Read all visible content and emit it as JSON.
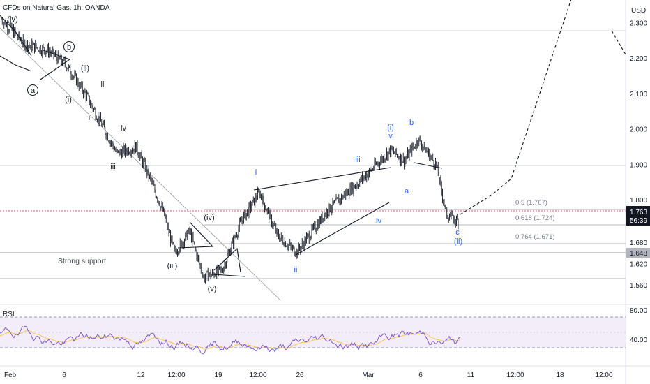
{
  "header": {
    "title": "CFDs on Natural Gas, 1h, OANDA",
    "currency": "USD"
  },
  "price_axis": {
    "ticks": [
      "2.300",
      "2.200",
      "2.100",
      "2.000",
      "1.900",
      "1.800",
      "1.680",
      "1.620",
      "1.560"
    ],
    "tick_values": [
      2.3,
      2.2,
      2.1,
      2.0,
      1.9,
      1.8,
      1.68,
      1.62,
      1.56
    ],
    "current_price": "1.763",
    "countdown": "56:39",
    "support_price": "1.648"
  },
  "time_axis": {
    "labels": [
      "Feb",
      "6",
      "12",
      "12:00",
      "19",
      "12:00",
      "26",
      "Mar",
      "6",
      "11",
      "12:00",
      "18",
      "12:00"
    ]
  },
  "fib_levels": [
    {
      "label": "0.5 (1.767)",
      "value": 1.767
    },
    {
      "label": "0.618 (1.724)",
      "value": 1.724
    },
    {
      "label": "0.764 (1.671)",
      "value": 1.671
    }
  ],
  "annotations": {
    "support": "Strong support"
  },
  "wave_labels": {
    "black": [
      "(iv)",
      "a",
      "b",
      "(ii)",
      "ii",
      "(i)",
      "i",
      "iv",
      "iii",
      "(iii)",
      "(v)",
      "(iv)"
    ],
    "blue": [
      "i",
      "iii",
      "(i)",
      "v",
      "b",
      "a",
      "iv",
      "ii",
      "c",
      "(ii)"
    ]
  },
  "rsi": {
    "label": "RSI",
    "ticks": [
      "80.00",
      "40.00"
    ],
    "upper": 70,
    "lower": 30,
    "last": 40
  },
  "colors": {
    "candle": "#131722",
    "blue_wave": "#2962ff",
    "rsi_line": "#7e57c2",
    "rsi_ma": "#f7c55c",
    "rsi_band": "#ede7f6",
    "trend": "#131722",
    "current_price_bg": "#131722",
    "support_bg": "#b2b5be"
  },
  "chart_data": {
    "type": "candlestick",
    "title": "CFDs on Natural Gas, 1h, OANDA",
    "ylim": [
      1.53,
      2.36
    ],
    "ylabel": "USD",
    "x_start_label": "Feb",
    "path_keypoints": [
      {
        "t": "Feb 1",
        "price": 2.31
      },
      {
        "t": "Feb 2",
        "price": 2.24
      },
      {
        "t": "Feb 4",
        "price": 2.22
      },
      {
        "t": "Feb 6",
        "price": 2.18
      },
      {
        "t": "Feb 8",
        "price": 2.09
      },
      {
        "t": "Feb 10",
        "price": 1.93
      },
      {
        "t": "Feb 11",
        "price": 1.95
      },
      {
        "t": "Feb 13",
        "price": 1.86
      },
      {
        "t": "Feb 15",
        "price": 1.76
      },
      {
        "t": "Feb 16",
        "price": 1.65
      },
      {
        "t": "Feb 17",
        "price": 1.71
      },
      {
        "t": "Feb 19",
        "price": 1.58
      },
      {
        "t": "Feb 20",
        "price": 1.6
      },
      {
        "t": "Feb 21",
        "price": 1.74
      },
      {
        "t": "Feb 22",
        "price": 1.82
      },
      {
        "t": "Feb 24",
        "price": 1.7
      },
      {
        "t": "Feb 25",
        "price": 1.65
      },
      {
        "t": "Feb 27",
        "price": 1.77
      },
      {
        "t": "Mar 1",
        "price": 1.86
      },
      {
        "t": "Mar 3",
        "price": 1.94
      },
      {
        "t": "Mar 4",
        "price": 1.91
      },
      {
        "t": "Mar 5",
        "price": 1.97
      },
      {
        "t": "Mar 7",
        "price": 1.9
      },
      {
        "t": "Mar 8",
        "price": 1.76
      },
      {
        "t": "Mar 9",
        "price": 1.74
      }
    ],
    "projection": [
      {
        "t": "Mar 9",
        "price": 1.74
      },
      {
        "t": "Mar 13",
        "price": 1.85
      },
      {
        "t": "Mar 15",
        "price": 2.36
      }
    ]
  }
}
